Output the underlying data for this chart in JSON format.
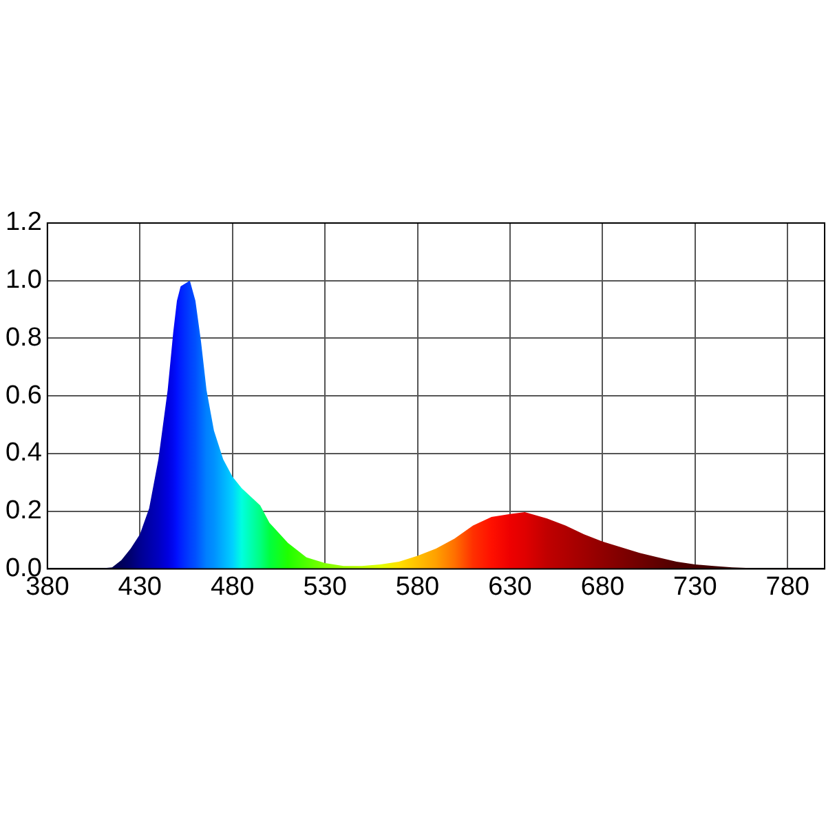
{
  "chart_data": {
    "type": "area",
    "x": [
      400,
      410,
      415,
      420,
      425,
      430,
      435,
      440,
      445,
      448,
      450,
      452,
      457,
      460,
      463,
      466,
      470,
      475,
      480,
      485,
      490,
      495,
      500,
      510,
      520,
      530,
      540,
      550,
      560,
      570,
      580,
      590,
      600,
      610,
      620,
      630,
      638,
      650,
      660,
      670,
      680,
      690,
      700,
      710,
      720,
      730,
      740,
      750,
      760,
      780,
      795
    ],
    "series": [
      {
        "values": [
          0,
          0.002,
          0.005,
          0.03,
          0.07,
          0.12,
          0.21,
          0.38,
          0.62,
          0.82,
          0.93,
          0.98,
          1.0,
          0.93,
          0.79,
          0.62,
          0.48,
          0.38,
          0.32,
          0.28,
          0.25,
          0.22,
          0.16,
          0.09,
          0.04,
          0.02,
          0.01,
          0.01,
          0.015,
          0.025,
          0.045,
          0.07,
          0.105,
          0.15,
          0.18,
          0.19,
          0.197,
          0.175,
          0.15,
          0.12,
          0.095,
          0.075,
          0.055,
          0.04,
          0.025,
          0.015,
          0.01,
          0.005,
          0.003,
          0.001,
          0
        ],
        "colors": [
          "#000030",
          "#000040",
          "#000050",
          "#00005a",
          "#000070",
          "#000090",
          "#0000a8",
          "#0000c0",
          "#0000e0",
          "#0008f0",
          "#0010ff",
          "#0020ff",
          "#0040ff",
          "#0050ff",
          "#0068ff",
          "#0080ff",
          "#0090ff",
          "#00b0ff",
          "#00d0ff",
          "#00ffe0",
          "#00ffb0",
          "#00ff80",
          "#00ff40",
          "#20ff00",
          "#50ff00",
          "#80ff00",
          "#a0ff00",
          "#c0ff00",
          "#e0ff00",
          "#ffe000",
          "#ffc000",
          "#ffa000",
          "#ff7000",
          "#ff3000",
          "#ff1000",
          "#ee0000",
          "#e00000",
          "#c00000",
          "#b00000",
          "#a00000",
          "#900000",
          "#800000",
          "#700000",
          "#600000",
          "#500000",
          "#480000",
          "#400000",
          "#380000",
          "#300000",
          "#200000",
          "#200000"
        ]
      }
    ],
    "xlim": [
      380,
      800
    ],
    "xticks": [
      380,
      430,
      480,
      530,
      580,
      630,
      680,
      730,
      780
    ],
    "ylim": [
      0,
      1.2
    ],
    "yticks": [
      {
        "value": 0,
        "label": "0.0"
      },
      {
        "value": 0.2,
        "label": "0.2"
      },
      {
        "value": 0.4,
        "label": "0.4"
      },
      {
        "value": 0.6,
        "label": "0.6"
      },
      {
        "value": 0.8,
        "label": "0.8"
      },
      {
        "value": 1,
        "label": "1.0"
      },
      {
        "value": 1.2,
        "label": "1.2"
      }
    ],
    "grid": true,
    "legend": false
  }
}
